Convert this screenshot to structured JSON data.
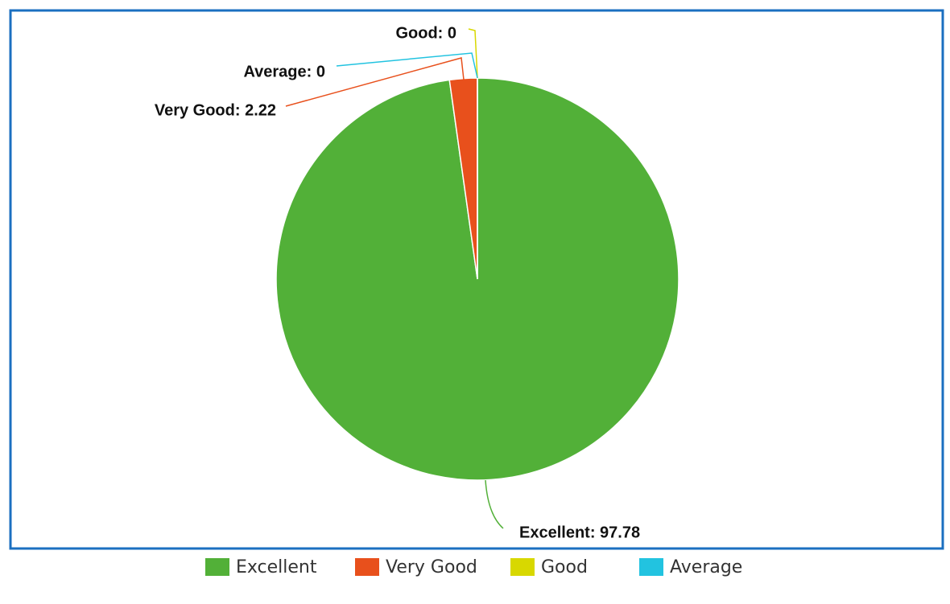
{
  "chart_data": {
    "type": "pie",
    "categories": [
      "Excellent",
      "Very Good",
      "Good",
      "Average"
    ],
    "values": [
      97.78,
      2.22,
      0,
      0
    ],
    "value_labels": [
      "Excellent: 97.78",
      "Very Good: 2.22",
      "Good: 0",
      "Average: 0"
    ],
    "colors": [
      "#52b038",
      "#e8501c",
      "#d8d800",
      "#22c3e0"
    ],
    "legend": "bottom"
  }
}
